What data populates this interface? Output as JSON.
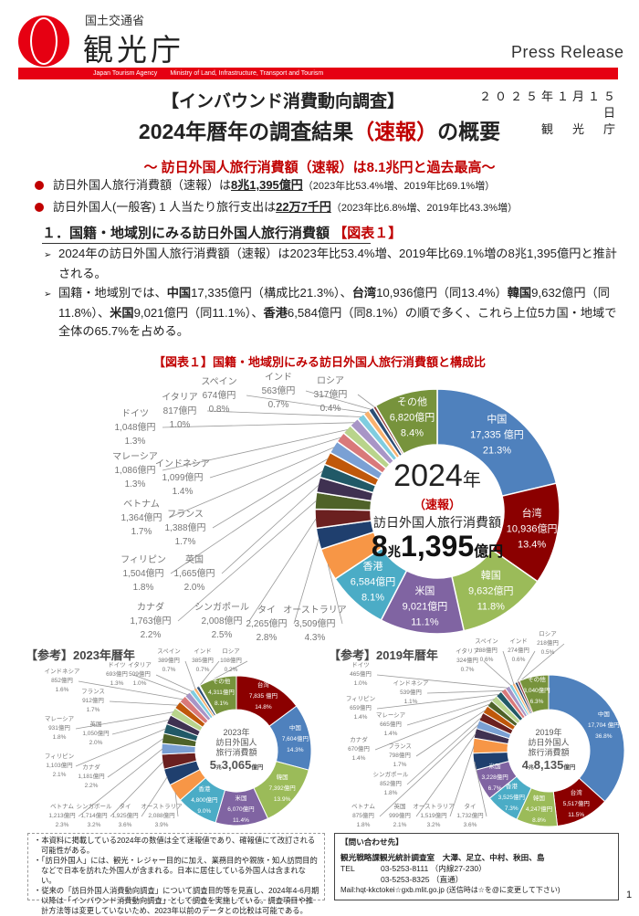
{
  "header": {
    "ministry": "国土交通省",
    "agency": "観光庁",
    "press_release": "Press Release",
    "english_agency": "Japan Tourism Agency",
    "english_ministry": "Ministry of Land, Infrastructure, Transport and Tourism",
    "date": "２０２５年１月１５日",
    "issuer": "観　光　庁",
    "brand_color": "#e60012"
  },
  "title": {
    "kicker": "【インバウンド消費動向調査】",
    "main_a": "2024年暦年の調査結果",
    "main_b": "（速報）",
    "main_c": "の概要",
    "subtitle": "～ 訪日外国人旅行消費額（速報）は8.1兆円と過去最高～"
  },
  "highlights": [
    {
      "text": "訪日外国人旅行消費額（速報）は",
      "bold": "8兆1,395億円",
      "note": "（2023年比53.4%増、2019年比69.1%増）"
    },
    {
      "text": "訪日外国人(一般客) 1 人当たり旅行支出は",
      "bold": "22万7千円",
      "note": "（2023年比6.8%増、2019年比43.3%増）"
    }
  ],
  "section1": {
    "heading": "１．国籍・地域別にみる訪日外国人旅行消費額",
    "heading_ref": "【図表１】",
    "p1": "2024年の訪日外国人旅行消費額（速報）は2023年比53.4%増、2019年比69.1%増の8兆1,395億円と推計される。",
    "p2": [
      {
        "t": "国籍・地域別では、",
        "b": false
      },
      {
        "t": "中国",
        "b": true
      },
      {
        "t": "17,335億円（構成比21.3%）、",
        "b": false
      },
      {
        "t": "台湾",
        "b": true
      },
      {
        "t": "10,936億円（同13.4%）",
        "b": false
      },
      {
        "t": "韓国",
        "b": true
      },
      {
        "t": "9,632億円（同11.8%）、",
        "b": false
      },
      {
        "t": "米国",
        "b": true
      },
      {
        "t": "9,021億円（同11.1%）、",
        "b": false
      },
      {
        "t": "香港",
        "b": true
      },
      {
        "t": "6,584億円（同8.1%）の順で多く、これら上位5カ国・地域で全体の65.7%を占める。",
        "b": false
      }
    ]
  },
  "figure": {
    "title": "【図表１】国籍・地域別にみる訪日外国人旅行消費額と構成比"
  },
  "chart_data": [
    {
      "type": "pie",
      "donut": true,
      "title": "【図表１】国籍・地域別にみる訪日外国人旅行消費額と構成比",
      "center": {
        "year": "2024",
        "year_unit": "年",
        "flag": "（速報）",
        "label": "訪日外国人旅行消費額",
        "total_cho": "8",
        "cho": "兆",
        "total_oku": "1,395",
        "oku": "億円"
      },
      "slices": [
        {
          "name": "中国",
          "amount": "17,335 億円",
          "pct": 21.3,
          "color": "#4f81bd",
          "inside": true
        },
        {
          "name": "台湾",
          "amount": "10,936億円",
          "pct": 13.4,
          "color": "#8b0000",
          "inside": true
        },
        {
          "name": "韓国",
          "amount": "9,632億円",
          "pct": 11.8,
          "color": "#9bbb59",
          "inside": true
        },
        {
          "name": "米国",
          "amount": "9,021億円",
          "pct": 11.1,
          "color": "#8064a2",
          "inside": true
        },
        {
          "name": "香港",
          "amount": "6,584億円",
          "pct": 8.1,
          "color": "#4bacc6",
          "inside": true
        },
        {
          "name": "オーストラリア",
          "amount": "3,509億円",
          "pct": 4.3,
          "color": "#f79646"
        },
        {
          "name": "タイ",
          "amount": "2,265億円",
          "pct": 2.8,
          "color": "#1f3f6e"
        },
        {
          "name": "シンガポール",
          "amount": "2,008億円",
          "pct": 2.5,
          "color": "#6b2020"
        },
        {
          "name": "カナダ",
          "amount": "1,763億円",
          "pct": 2.2,
          "color": "#4f6228"
        },
        {
          "name": "英国",
          "amount": "1,665億円",
          "pct": 2.0,
          "color": "#3f3151"
        },
        {
          "name": "フィリピン",
          "amount": "1,504億円",
          "pct": 1.8,
          "color": "#215967"
        },
        {
          "name": "フランス",
          "amount": "1,388億円",
          "pct": 1.7,
          "color": "#c0580a"
        },
        {
          "name": "ベトナム",
          "amount": "1,364億円",
          "pct": 1.7,
          "color": "#7aa0d4"
        },
        {
          "name": "インドネシア",
          "amount": "1,099億円",
          "pct": 1.4,
          "color": "#d9797a"
        },
        {
          "name": "マレーシア",
          "amount": "1,086億円",
          "pct": 1.3,
          "color": "#b9d48c"
        },
        {
          "name": "ドイツ",
          "amount": "1,048億円",
          "pct": 1.3,
          "color": "#a895c6"
        },
        {
          "name": "イタリア",
          "amount": "817億円",
          "pct": 1.0,
          "color": "#7fcde0"
        },
        {
          "name": "スペイン",
          "amount": "674億円",
          "pct": 0.8,
          "color": "#f9b16e"
        },
        {
          "name": "インド",
          "amount": "563億円",
          "pct": 0.7,
          "color": "#2c4d75"
        },
        {
          "name": "ロシア",
          "amount": "317億円",
          "pct": 0.4,
          "color": "#8c3836"
        },
        {
          "name": "その他",
          "amount": "6,820億円",
          "pct": 8.4,
          "color": "#77933c",
          "inside": true
        }
      ]
    },
    {
      "type": "pie",
      "donut": true,
      "title": "【参考】2023年暦年",
      "center": {
        "year": "2023",
        "year_unit": "年",
        "label": "訪日外国人",
        "label2": "旅行消費額",
        "total_cho": "5",
        "cho": "兆",
        "total_oku": "3,065",
        "oku": "億円"
      },
      "slices": [
        {
          "name": "台湾",
          "amount": "7,835 億円",
          "pct": 14.8,
          "color": "#8b0000",
          "inside": true
        },
        {
          "name": "中国",
          "amount": "7,604億円",
          "pct": 14.3,
          "color": "#4f81bd",
          "inside": true
        },
        {
          "name": "韓国",
          "amount": "7,392億円",
          "pct": 13.9,
          "color": "#9bbb59",
          "inside": true
        },
        {
          "name": "米国",
          "amount": "6,070億円",
          "pct": 11.4,
          "color": "#8064a2",
          "inside": true
        },
        {
          "name": "香港",
          "amount": "4,800億円",
          "pct": 9.0,
          "color": "#4bacc6",
          "inside": true
        },
        {
          "name": "オーストラリア",
          "amount": "2,088億円",
          "pct": 3.9,
          "color": "#f79646"
        },
        {
          "name": "タイ",
          "amount": "1,925億円",
          "pct": 3.6,
          "color": "#1f3f6e"
        },
        {
          "name": "シンガポール",
          "amount": "1,714億円",
          "pct": 3.2,
          "color": "#6b2020"
        },
        {
          "name": "ベトナム",
          "amount": "1,213億円",
          "pct": 2.3,
          "color": "#7aa0d4"
        },
        {
          "name": "カナダ",
          "amount": "1,181億円",
          "pct": 2.2,
          "color": "#4f6228"
        },
        {
          "name": "フィリピン",
          "amount": "1,103億円",
          "pct": 2.1,
          "color": "#215967"
        },
        {
          "name": "英国",
          "amount": "1,050億円",
          "pct": 2.0,
          "color": "#3f3151"
        },
        {
          "name": "マレーシア",
          "amount": "931億円",
          "pct": 1.8,
          "color": "#b9d48c"
        },
        {
          "name": "フランス",
          "amount": "912億円",
          "pct": 1.7,
          "color": "#c0580a"
        },
        {
          "name": "インドネシア",
          "amount": "852億円",
          "pct": 1.6,
          "color": "#d9797a"
        },
        {
          "name": "ドイツ",
          "amount": "693億円",
          "pct": 1.3,
          "color": "#a895c6"
        },
        {
          "name": "イタリア",
          "amount": "509億円",
          "pct": 1.0,
          "color": "#7fcde0"
        },
        {
          "name": "スペイン",
          "amount": "389億円",
          "pct": 0.7,
          "color": "#f9b16e"
        },
        {
          "name": "インド",
          "amount": "385億円",
          "pct": 0.7,
          "color": "#2c4d75"
        },
        {
          "name": "ロシア",
          "amount": "108億円",
          "pct": 0.2,
          "color": "#8c3836"
        },
        {
          "name": "その他",
          "amount": "4,311億円",
          "pct": 8.1,
          "color": "#77933c",
          "inside": true
        }
      ]
    },
    {
      "type": "pie",
      "donut": true,
      "title": "【参考】2019年暦年",
      "center": {
        "year": "2019",
        "year_unit": "年",
        "label": "訪日外国人",
        "label2": "旅行消費額",
        "total_cho": "4",
        "cho": "兆",
        "total_oku": "8,135",
        "oku": "億円"
      },
      "slices": [
        {
          "name": "中国",
          "amount": "17,704 億円",
          "pct": 36.8,
          "color": "#4f81bd",
          "inside": true
        },
        {
          "name": "台湾",
          "amount": "5,517億円",
          "pct": 11.5,
          "color": "#8b0000",
          "inside": true
        },
        {
          "name": "韓国",
          "amount": "4,247億円",
          "pct": 8.8,
          "color": "#9bbb59",
          "inside": true
        },
        {
          "name": "香港",
          "amount": "3,525億円",
          "pct": 7.3,
          "color": "#4bacc6",
          "inside": true
        },
        {
          "name": "米国",
          "amount": "3,228億円",
          "pct": 6.7,
          "color": "#8064a2",
          "inside": true
        },
        {
          "name": "タイ",
          "amount": "1,732億円",
          "pct": 3.6,
          "color": "#1f3f6e"
        },
        {
          "name": "オーストラリア",
          "amount": "1,519億円",
          "pct": 3.2,
          "color": "#f79646"
        },
        {
          "name": "英国",
          "amount": "999億円",
          "pct": 2.1,
          "color": "#3f3151"
        },
        {
          "name": "ベトナム",
          "amount": "875億円",
          "pct": 1.8,
          "color": "#7aa0d4"
        },
        {
          "name": "シンガポール",
          "amount": "852億円",
          "pct": 1.8,
          "color": "#6b2020"
        },
        {
          "name": "フランス",
          "amount": "798億円",
          "pct": 1.7,
          "color": "#c0580a"
        },
        {
          "name": "カナダ",
          "amount": "670億円",
          "pct": 1.4,
          "color": "#4f6228"
        },
        {
          "name": "マレーシア",
          "amount": "665億円",
          "pct": 1.4,
          "color": "#b9d48c"
        },
        {
          "name": "フィリピン",
          "amount": "659億円",
          "pct": 1.4,
          "color": "#215967"
        },
        {
          "name": "インドネシア",
          "amount": "539億円",
          "pct": 1.1,
          "color": "#d9797a"
        },
        {
          "name": "ドイツ",
          "amount": "465億円",
          "pct": 1.0,
          "color": "#a895c6"
        },
        {
          "name": "イタリア",
          "amount": "324億円",
          "pct": 0.7,
          "color": "#7fcde0"
        },
        {
          "name": "スペイン",
          "amount": "288億円",
          "pct": 0.6,
          "color": "#f9b16e"
        },
        {
          "name": "インド",
          "amount": "274億円",
          "pct": 0.6,
          "color": "#2c4d75"
        },
        {
          "name": "ロシア",
          "amount": "218億円",
          "pct": 0.5,
          "color": "#8c3836"
        },
        {
          "name": "その他",
          "amount": "3,040億円",
          "pct": 6.3,
          "color": "#77933c",
          "inside": true
        }
      ]
    }
  ],
  "notes": [
    "本資料に掲載している2024年の数値は全て速報値であり、確報値にて改訂される可能性がある。",
    "「訪日外国人」には、観光・レジャー目的に加え、業務目的や親族・知人訪問目的などで日本を訪れた外国人が含まれる。日本に居住している外国人は含まれない。",
    "従来の「訪日外国人消費動向調査」について調査目的等を見直し、2024年4-6月期以降は「インバウンド消費動向調査」として調査を実施している。調査項目や推計方法等は変更していないため、2023年以前のデータとの比較は可能である。"
  ],
  "contact": {
    "heading": "【問い合わせ先】",
    "office": "観光戦略課観光統計調査室　大澤、足立、中村、秋田、島",
    "tel_label": "TEL",
    "tel1": "03-5253-8111 （内線27-230）",
    "tel2": "03-5253-8325 （直通）",
    "mail": "Mail:hqt-kkctokei☆gxb.mlit.go.jp (送信時は☆を@に変更して下さい)"
  },
  "page_number": "1"
}
